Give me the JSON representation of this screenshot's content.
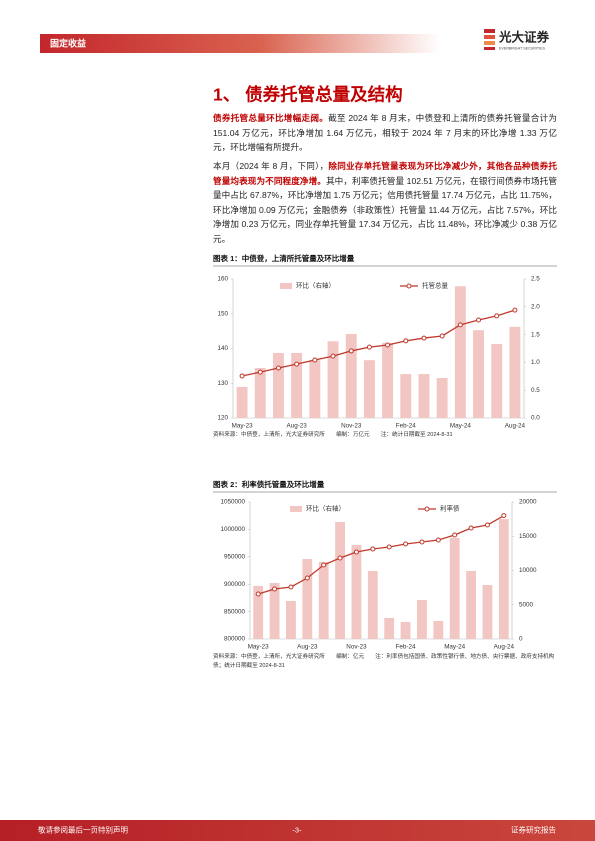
{
  "header": {
    "section": "固定收益",
    "logo_cn": "光大证券",
    "logo_en": "EVERBRIGHT SECURITIES"
  },
  "section_title": "1、 债券托管总量及结构",
  "paragraphs": [
    [
      {
        "text": "债券托管总量环比增幅走阔。",
        "bold": true
      },
      {
        "text": "截至 2024 年 8 月末，中债登和上清所的债券托管量合计为 151.04 万亿元，环比净增加 1.64 万亿元，相较于 2024 年 7 月末的环比净增 1.33 万亿元，环比增幅有所提升。",
        "bold": false
      }
    ],
    [
      {
        "text": "本月（2024 年 8 月，下同），",
        "bold": false
      },
      {
        "text": "除同业存单托管量表现为环比净减少外，其他各品种债券托管量均表现为不同程度净增。",
        "bold": true
      },
      {
        "text": "其中，利率债托管量 102.51 万亿元，在银行间债券市场托管量中占比 67.87%，环比净增加 1.75 万亿元；信用债托管量 17.74 万亿元，占比 11.75%，环比净增加 0.09 万亿元；金融债券（非政策性）托管量 11.44 万亿元，占比 7.57%，环比净增加 0.23 万亿元，同业存单托管量 17.34 万亿元，占比 11.48%，环比净减少 0.38 万亿元。",
        "bold": false
      }
    ]
  ],
  "chart_data": [
    {
      "type": "combo",
      "title": "图表 1：中债登，上清所托管量及环比增量",
      "categories": [
        "May-23",
        null,
        null,
        "Aug-23",
        null,
        null,
        "Nov-23",
        null,
        null,
        "Feb-24",
        null,
        null,
        "May-24",
        null,
        null,
        "Aug-24"
      ],
      "series": [
        {
          "name": "环比（右轴）",
          "type": "bar",
          "axis": "y2",
          "color": "#f2c6c2",
          "values": [
            0.56,
            0.9,
            1.17,
            1.17,
            1.04,
            1.38,
            1.51,
            1.04,
            1.35,
            0.79,
            0.79,
            0.72,
            2.37,
            1.58,
            1.33,
            1.64
          ]
        },
        {
          "name": "托管总量",
          "type": "line",
          "color": "#c0392b",
          "values": [
            132.1,
            133.2,
            134.4,
            135.5,
            136.7,
            137.8,
            139.3,
            140.4,
            141.0,
            142.2,
            143.0,
            143.6,
            146.8,
            148.2,
            149.4,
            151.04
          ]
        }
      ],
      "ylim": [
        120,
        160
      ],
      "yticks": [
        120,
        130,
        140,
        150,
        160
      ],
      "y2lim": [
        0,
        2.5
      ],
      "y2ticks": [
        {
          "value": 0,
          "label": "0.0"
        },
        0.5,
        {
          "value": 1,
          "label": "1.0"
        },
        1.5,
        {
          "value": 2,
          "label": "2.0"
        },
        2.5
      ],
      "grid": false,
      "source": "资料来源：中债登，上清所，光大证券研究所　　编制：万亿元　　注：统计日期截至 2024-8-31"
    },
    {
      "type": "combo",
      "title": "图表 2：利率债托管量及环比增量",
      "categories": [
        "May-23",
        null,
        null,
        "Aug-23",
        null,
        null,
        "Nov-23",
        null,
        null,
        "Feb-24",
        null,
        null,
        "May-24",
        null,
        null,
        "Aug-24"
      ],
      "series": [
        {
          "name": "环比（右轴）",
          "type": "bar",
          "axis": "y2",
          "color": "#f2c6c2",
          "values": [
            7740,
            8180,
            5550,
            11680,
            11240,
            17080,
            13720,
            9930,
            3070,
            2480,
            5690,
            2630,
            14740,
            9930,
            7880,
            17500
          ]
        },
        {
          "name": "利率债",
          "type": "line",
          "color": "#c0392b",
          "values": [
            882100,
            891200,
            894900,
            911300,
            935000,
            947800,
            958800,
            964200,
            967900,
            973400,
            977000,
            980700,
            989800,
            1002600,
            1008000,
            1025100
          ]
        }
      ],
      "ylim": [
        800000,
        1050000
      ],
      "yticks": [
        800000,
        850000,
        900000,
        950000,
        1000000,
        1050000
      ],
      "y2lim": [
        0,
        20000
      ],
      "y2ticks": [
        0,
        5000,
        10000,
        15000,
        20000
      ],
      "grid": false,
      "source": "资料来源：中债登，上清所，光大证券研究所　　编制：亿元　　注：利率债包括国债、政策性银行债、地方债、央行票据、政府支持机构债；统计日期截至 2024-8-31"
    }
  ],
  "footer": {
    "disclaimer": "敬请参阅最后一页特别声明",
    "page": "-3-",
    "doc_type": "证券研究报告"
  }
}
